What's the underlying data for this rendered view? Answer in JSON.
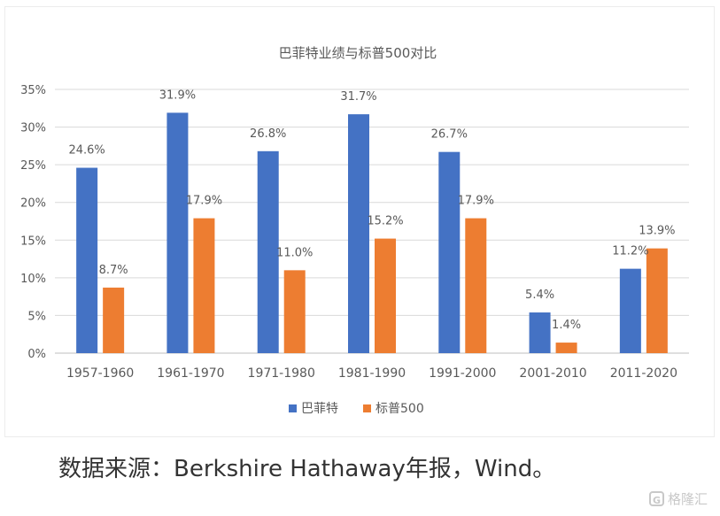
{
  "chart_data": {
    "type": "bar",
    "title": "巴菲特业绩与标普500对比",
    "categories": [
      "1957-1960",
      "1961-1970",
      "1971-1980",
      "1981-1990",
      "1991-2000",
      "2001-2010",
      "2011-2020"
    ],
    "series": [
      {
        "name": "巴菲特",
        "color": "#4472c4",
        "values": [
          24.6,
          31.9,
          26.8,
          31.7,
          26.7,
          5.4,
          11.2
        ]
      },
      {
        "name": "标普500",
        "color": "#ed7d31",
        "values": [
          8.7,
          17.9,
          11.0,
          15.2,
          17.9,
          1.4,
          13.9
        ]
      }
    ],
    "ylim": [
      0,
      35
    ],
    "yticks": [
      "0%",
      "5%",
      "10%",
      "15%",
      "20%",
      "25%",
      "30%",
      "35%"
    ],
    "data_labels": [
      [
        "24.6%",
        "31.9%",
        "26.8%",
        "31.7%",
        "26.7%",
        "5.4%",
        "11.2%"
      ],
      [
        "8.7%",
        "17.9%",
        "11.0%",
        "15.2%",
        "17.9%",
        "1.4%",
        "13.9%"
      ]
    ],
    "grid": true,
    "legend_position": "bottom"
  },
  "footer": {
    "source_note": "数据来源：Berkshire Hathaway年报，Wind。",
    "watermark_text": "格隆汇"
  }
}
